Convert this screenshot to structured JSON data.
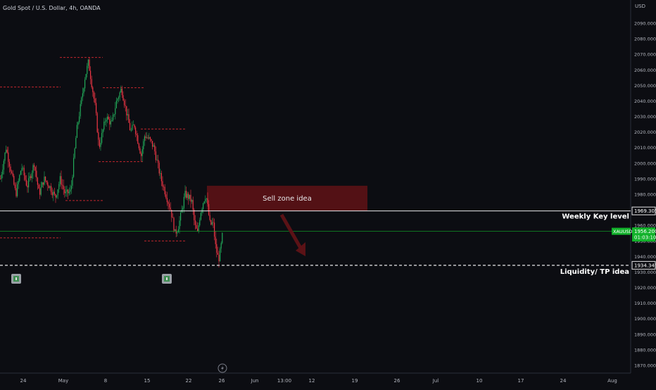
{
  "header": {
    "symbol_line": "Gold Spot / U.S. Dollar, 4h, OANDA",
    "currency": "USD"
  },
  "colors": {
    "background": "#0c0d12",
    "up": "#22ab5a",
    "down": "#f23645",
    "dashed_red": "#c0262d",
    "zone_fill": "#5b1216",
    "price_badge": "#12b22b",
    "axis_text": "#b2b5be"
  },
  "chart_data": {
    "type": "candlestick",
    "timeframe": "4h",
    "y_axis": {
      "range": [
        1865,
        2092
      ],
      "ticks": [
        2090,
        2080,
        2070,
        2060,
        2050,
        2040,
        2030,
        2020,
        2010,
        2000,
        1990,
        1980,
        1970,
        1960,
        1950,
        1940,
        1930,
        1920,
        1910,
        1900,
        1890,
        1880,
        1870
      ],
      "tick_labels": [
        "2090.000",
        "2080.000",
        "2070.000",
        "2060.000",
        "2050.000",
        "2040.000",
        "2030.000",
        "2020.000",
        "2010.000",
        "2000.000",
        "1990.000",
        "1980.000",
        "1970.000",
        "1960.000",
        "1950.000",
        "1940.000",
        "1930.000",
        "1920.000",
        "1910.000",
        "1900.000",
        "1890.000",
        "1880.000",
        "1870.000"
      ]
    },
    "x_axis": {
      "labels": [
        "24",
        "May",
        "8",
        "15",
        "22",
        "26",
        "Jun",
        "13:00",
        "12",
        "19",
        "26",
        "Jul",
        "10",
        "17",
        "24",
        "Aug"
      ]
    },
    "levels": [
      {
        "name": "weekly-key-level",
        "value": 1969.305,
        "label": "1969.305",
        "text": "Weekly Key level"
      },
      {
        "name": "liquidity-tp",
        "value": 1934.345,
        "label": "1934.345",
        "text": "Liquidity/ TP idea"
      }
    ],
    "current_price": {
      "symbol": "XAUUSD",
      "value": 1956.2,
      "label": "1956.200",
      "countdown": "01:03:10"
    },
    "sell_zone": {
      "label": "Sell zone idea",
      "top": 1985.5,
      "bottom": 1969.3
    },
    "dashed_levels": [
      {
        "value": 2068.0
      },
      {
        "value": 2049.0
      },
      {
        "value": 2048.5
      },
      {
        "value": 2022.0
      },
      {
        "value": 2001.0
      },
      {
        "value": 1976.0
      },
      {
        "value": 1952.0
      },
      {
        "value": 1950.0
      }
    ],
    "series": {
      "anchors": [
        [
          0,
          1990
        ],
        [
          8,
          2010
        ],
        [
          15,
          1995
        ],
        [
          22,
          1980
        ],
        [
          30,
          1998
        ],
        [
          38,
          1985
        ],
        [
          48,
          2000
        ],
        [
          55,
          1980
        ],
        [
          62,
          1990
        ],
        [
          70,
          1985
        ],
        [
          78,
          1978
        ],
        [
          85,
          1990
        ],
        [
          92,
          1980
        ],
        [
          100,
          1982
        ],
        [
          108,
          2020
        ],
        [
          115,
          2040
        ],
        [
          120,
          2055
        ],
        [
          125,
          2065
        ],
        [
          130,
          2050
        ],
        [
          135,
          2035
        ],
        [
          140,
          2010
        ],
        [
          145,
          2020
        ],
        [
          150,
          2030
        ],
        [
          158,
          2025
        ],
        [
          165,
          2040
        ],
        [
          172,
          2048
        ],
        [
          178,
          2035
        ],
        [
          185,
          2020
        ],
        [
          190,
          2025
        ],
        [
          195,
          2015
        ],
        [
          200,
          2005
        ],
        [
          205,
          2018
        ],
        [
          212,
          2015
        ],
        [
          218,
          2010
        ],
        [
          223,
          2000
        ],
        [
          228,
          1990
        ],
        [
          235,
          1980
        ],
        [
          242,
          1970
        ],
        [
          248,
          1955
        ],
        [
          252,
          1958
        ],
        [
          258,
          1970
        ],
        [
          262,
          1980
        ],
        [
          268,
          1978
        ],
        [
          272,
          1975
        ],
        [
          276,
          1960
        ],
        [
          280,
          1955
        ],
        [
          284,
          1968
        ],
        [
          288,
          1975
        ],
        [
          292,
          1980
        ],
        [
          295,
          1970
        ],
        [
          298,
          1960
        ],
        [
          302,
          1962
        ],
        [
          306,
          1945
        ],
        [
          310,
          1938
        ],
        [
          313,
          1945
        ],
        [
          316,
          1956
        ]
      ]
    }
  },
  "annotations": {
    "flag_icons": [
      "money-flag-icon",
      "money-flag-icon"
    ],
    "lightning_icon": "lightning-icon"
  }
}
